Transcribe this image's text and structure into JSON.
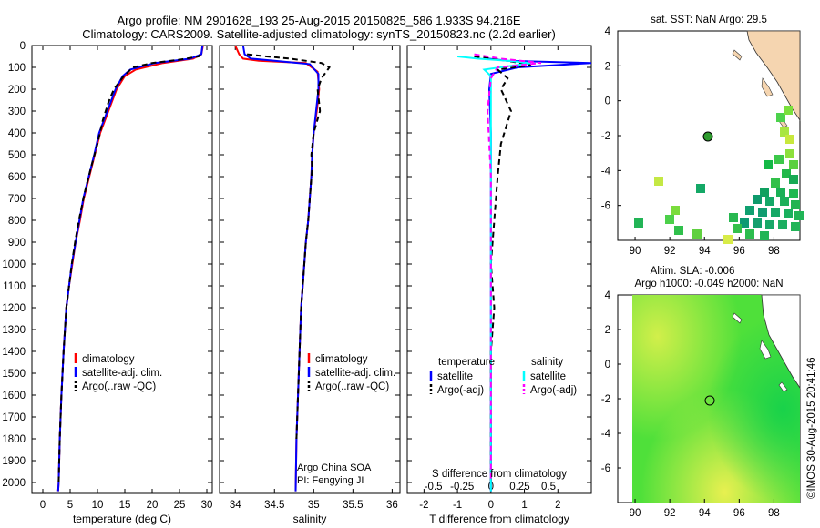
{
  "header": {
    "line1": "Argo profile: NM 2901628_193 25-Aug-2015 20150825_586 1.933S 94.216E",
    "line2": "Climatology: CARS2009. Satellite-adjusted climatology: synTS_20150823.nc (2.2d earlier)"
  },
  "colors": {
    "climatology": "#ff0000",
    "satellite": "#0000ff",
    "argo": "#000000",
    "salinity_satellite": "#00ffff",
    "salinity_argo": "#ff00ff"
  },
  "chart_data": [
    {
      "type": "line",
      "id": "temperature",
      "xlabel": "temperature (deg C)",
      "ylabel": "",
      "xlim": [
        -2,
        31
      ],
      "ylim": [
        2050,
        0
      ],
      "xticks": [
        0,
        5,
        10,
        15,
        20,
        25,
        30
      ],
      "yticks": [
        0,
        100,
        200,
        300,
        400,
        500,
        600,
        700,
        800,
        900,
        1000,
        1100,
        1200,
        1300,
        1400,
        1500,
        1600,
        1700,
        1800,
        1900,
        2000
      ],
      "legend": [
        "climatology",
        "satellite-adj. clim.",
        "Argo(..raw -QC)"
      ],
      "legend_position": "bottom-center",
      "series": [
        {
          "name": "climatology",
          "style": "solid",
          "x": [
            29.3,
            29.0,
            27.5,
            22.0,
            17.0,
            15.0,
            13.5,
            12.0,
            10.5,
            9.5,
            8.5,
            7.5,
            6.8,
            6.0,
            5.4,
            4.8,
            4.3,
            3.8,
            3.4,
            3.1,
            2.9,
            2.8
          ],
          "y": [
            0,
            40,
            60,
            80,
            110,
            140,
            200,
            300,
            400,
            500,
            600,
            700,
            800,
            900,
            1000,
            1100,
            1200,
            1400,
            1600,
            1800,
            2000,
            2040
          ]
        },
        {
          "name": "satellite-adj. clim.",
          "style": "solid",
          "x": [
            29.2,
            29.0,
            27.0,
            20.5,
            16.0,
            14.6,
            13.3,
            11.8,
            10.3,
            9.4,
            8.4,
            7.4,
            6.7,
            6.0,
            5.3,
            4.8,
            4.3,
            3.8,
            3.4,
            3.1,
            2.9,
            2.8
          ],
          "y": [
            0,
            40,
            60,
            80,
            110,
            140,
            200,
            300,
            400,
            500,
            600,
            700,
            800,
            900,
            1000,
            1100,
            1200,
            1400,
            1600,
            1800,
            2000,
            2040
          ]
        },
        {
          "name": "Argo(..raw -QC)",
          "style": "dashed",
          "x": [
            28.8,
            28.5,
            25.0,
            20.0,
            16.5,
            14.8,
            13.0,
            12.0,
            11.0,
            10.0,
            8.8,
            7.6,
            6.6,
            5.9,
            5.3,
            4.8,
            4.3,
            3.8,
            3.4,
            3.1,
            2.9
          ],
          "y": [
            40,
            50,
            65,
            80,
            100,
            140,
            200,
            260,
            340,
            450,
            560,
            680,
            800,
            900,
            1000,
            1100,
            1200,
            1400,
            1600,
            1800,
            2000
          ]
        }
      ]
    },
    {
      "type": "line",
      "id": "salinity",
      "xlabel": "salinity",
      "xlim": [
        33.8,
        36.1
      ],
      "ylim": [
        2050,
        0
      ],
      "xticks": [
        34,
        34.5,
        35,
        35.5,
        36
      ],
      "legend": [
        "climatology",
        "satellite-adj. clim.",
        "Argo(..raw -QC)"
      ],
      "legend_position": "bottom-center",
      "annotation": [
        "Argo China SOA",
        "PI: Fengying JI"
      ],
      "series": [
        {
          "name": "climatology",
          "style": "solid",
          "x": [
            34.0,
            34.05,
            34.1,
            34.3,
            34.9,
            35.05,
            35.07,
            35.04,
            35.0,
            34.98,
            34.97,
            34.95,
            34.93,
            34.9,
            34.88,
            34.86,
            34.84,
            34.82,
            34.8,
            34.78,
            34.77
          ],
          "y": [
            0,
            40,
            60,
            70,
            80,
            120,
            200,
            300,
            400,
            500,
            600,
            700,
            800,
            900,
            1000,
            1100,
            1200,
            1400,
            1600,
            1800,
            2040
          ]
        },
        {
          "name": "satellite-adj. clim.",
          "style": "solid",
          "x": [
            34.1,
            34.12,
            34.2,
            34.5,
            34.95,
            35.06,
            35.06,
            35.03,
            35.0,
            34.98,
            34.97,
            34.95,
            34.93,
            34.9,
            34.88,
            34.86,
            34.84,
            34.82,
            34.8,
            34.78,
            34.77
          ],
          "y": [
            0,
            40,
            60,
            70,
            85,
            130,
            200,
            300,
            400,
            500,
            600,
            700,
            800,
            900,
            1000,
            1100,
            1200,
            1400,
            1600,
            1800,
            2040
          ]
        },
        {
          "name": "Argo(..raw -QC)",
          "style": "dashed",
          "x": [
            34.15,
            34.4,
            34.7,
            35.1,
            35.2,
            35.1,
            35.05,
            35.08,
            35.0,
            34.97,
            34.98,
            34.95,
            34.93,
            34.9,
            34.88,
            34.86,
            34.84,
            34.82,
            34.8,
            34.78
          ],
          "y": [
            40,
            50,
            60,
            80,
            100,
            150,
            200,
            300,
            400,
            500,
            560,
            700,
            800,
            900,
            1000,
            1100,
            1200,
            1400,
            1600,
            1800
          ]
        }
      ]
    },
    {
      "type": "line",
      "id": "difference",
      "xlabel": "T difference from climatology",
      "xlabel_top": "S difference from climatology",
      "xlim": [
        -2.5,
        3
      ],
      "ylim": [
        2050,
        0
      ],
      "xticks": [
        -2,
        -1,
        0,
        1,
        2
      ],
      "xticks_s": [
        "-0.5",
        "-0.25",
        "0",
        "0.25",
        "0.5"
      ],
      "legend_temperature_title": "temperature",
      "legend_salinity_title": "salinity",
      "legend": [
        "satellite",
        "Argo(-adj)",
        "satellite",
        "Argo(-adj)"
      ],
      "legend_position": "bottom-center",
      "series": [
        {
          "name": "temperature satellite",
          "style": "solid",
          "x": [
            -0.1,
            0.5,
            3.0,
            0.8,
            0.0,
            -0.05,
            0.0,
            0.0,
            0.0,
            0.0,
            0.0,
            0.0,
            0.0,
            0.0,
            0.0,
            0.0,
            0.0
          ],
          "y": [
            60,
            70,
            80,
            100,
            130,
            200,
            400,
            600,
            800,
            1000,
            1200,
            1400,
            1600,
            1800,
            1900,
            2000,
            2040
          ]
        },
        {
          "name": "temperature Argo(-adj)",
          "style": "dashed",
          "x": [
            -0.5,
            0.5,
            1.2,
            0.2,
            0.5,
            0.3,
            0.6,
            0.3,
            0.2,
            0.1,
            0.0,
            0.1,
            0.0,
            0.0,
            0.0,
            0.0
          ],
          "y": [
            50,
            70,
            90,
            110,
            150,
            200,
            300,
            450,
            600,
            800,
            1000,
            1200,
            1400,
            1600,
            1800,
            2000
          ]
        },
        {
          "name": "salinity satellite",
          "style": "solid",
          "x": [
            -1.0,
            -0.4,
            0.5,
            1.2,
            -0.2,
            0.0,
            0.0,
            0.0,
            0.0,
            0.0,
            0.0,
            0.0,
            0.0
          ],
          "y": [
            50,
            60,
            70,
            80,
            110,
            140,
            300,
            600,
            1000,
            1400,
            1800,
            2000,
            2040
          ]
        },
        {
          "name": "salinity Argo(-adj)",
          "style": "dashed",
          "x": [
            -0.5,
            0.3,
            1.5,
            0.2,
            0.0,
            -0.1,
            0.0,
            0.0,
            0.0,
            0.0,
            0.0
          ],
          "y": [
            40,
            60,
            80,
            100,
            150,
            300,
            600,
            1000,
            1400,
            1800,
            2000
          ]
        }
      ]
    },
    {
      "type": "heatmap",
      "id": "sst_map",
      "title": "sat. SST: NaN Argo: 29.5",
      "xlim": [
        89,
        99.5
      ],
      "ylim": [
        -8,
        4
      ],
      "xticks": [
        90,
        92,
        94,
        96,
        98
      ],
      "yticks": [
        4,
        2,
        0,
        -2,
        -4,
        -6
      ],
      "argo_location": [
        94.216,
        -1.933
      ]
    },
    {
      "type": "heatmap",
      "id": "sla_map",
      "title_line1": "Altim. SLA: -0.006",
      "title_line2": "Argo h1000: -0.049 h2000: NaN",
      "xlim": [
        89,
        99.5
      ],
      "ylim": [
        -8,
        4
      ],
      "xticks": [
        90,
        92,
        94,
        96,
        98
      ],
      "yticks": [
        4,
        2,
        0,
        -2,
        -4,
        -6
      ],
      "argo_location": [
        94.216,
        -1.933
      ]
    }
  ],
  "footer": {
    "stamp": "©IMOS 30-Aug-2015 20:41:46"
  }
}
